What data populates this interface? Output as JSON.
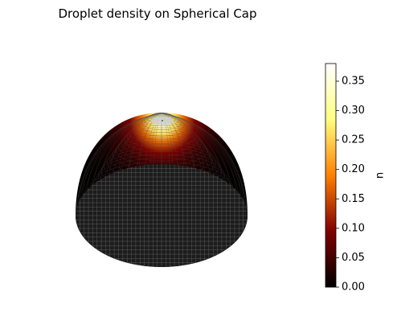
{
  "chart_data": {
    "type": "surface3d",
    "title": "Droplet density on Spherical Cap",
    "surface": "spherical-cap",
    "colormap": "afmhot",
    "colorbar": {
      "label": "n",
      "min": 0.0,
      "max": 0.38,
      "ticks": [
        "0.00",
        "0.05",
        "0.10",
        "0.15",
        "0.20",
        "0.25",
        "0.30",
        "0.35"
      ],
      "tick_values": [
        0.0,
        0.05,
        0.1,
        0.15,
        0.2,
        0.25,
        0.3,
        0.35
      ],
      "placement": "right"
    },
    "density_profile": {
      "peak_value": 0.38,
      "peak_location": "apex",
      "base_value": 0.0,
      "base_disk": "dark gray wireframe"
    },
    "grid": false,
    "axes_visible": false
  }
}
